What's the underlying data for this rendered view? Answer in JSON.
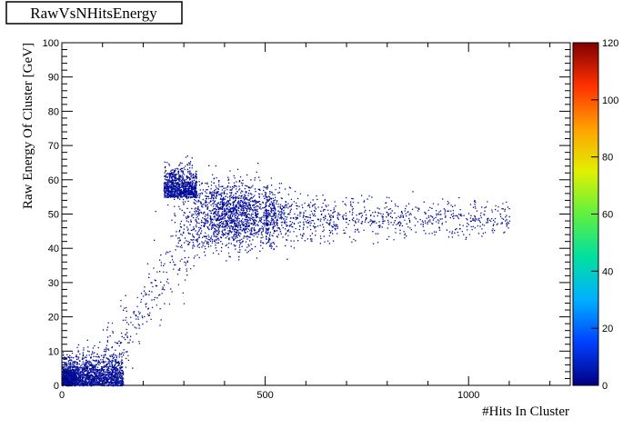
{
  "chart_data": {
    "type": "heatmap",
    "title": "RawVsNHitsEnergy",
    "xlabel": "#Hits In Cluster",
    "ylabel": "Raw Energy Of Cluster [GeV]",
    "xlim": [
      0,
      1250
    ],
    "ylim": [
      0,
      100
    ],
    "x_ticks": [
      0,
      500,
      1000
    ],
    "y_ticks": [
      0,
      10,
      20,
      30,
      40,
      50,
      60,
      70,
      80,
      90,
      100
    ],
    "z_range": [
      0,
      120
    ],
    "z_ticks": [
      0,
      20,
      40,
      60,
      80,
      100,
      120
    ],
    "colormap": [
      "#000080",
      "#0040ff",
      "#00b0ff",
      "#00e0a0",
      "#60f040",
      "#e0f000",
      "#ffa000",
      "#ff3000",
      "#800000"
    ],
    "regions": [
      {
        "name": "low-energy-core",
        "x_center": 15,
        "y_center": 2,
        "x_spread": 12,
        "y_spread": 1.5,
        "relative_density": "very high"
      },
      {
        "name": "low-energy-band",
        "x_range": [
          0,
          150
        ],
        "y_range": [
          0,
          12
        ],
        "relative_density": "high"
      },
      {
        "name": "rising-diagonal",
        "x_range": [
          100,
          330
        ],
        "y_range": [
          5,
          45
        ],
        "relative_density": "low"
      },
      {
        "name": "main-cluster",
        "x_center": 420,
        "y_center": 50,
        "x_spread": 60,
        "y_spread": 5,
        "relative_density": "high"
      },
      {
        "name": "high-hits-tail",
        "x_range": [
          500,
          1100
        ],
        "y_range": [
          42,
          56
        ],
        "relative_density": "medium"
      },
      {
        "name": "upper-spray",
        "x_range": [
          250,
          330
        ],
        "y_range": [
          55,
          67
        ],
        "relative_density": "medium"
      }
    ],
    "grid": false,
    "legend": "none"
  }
}
